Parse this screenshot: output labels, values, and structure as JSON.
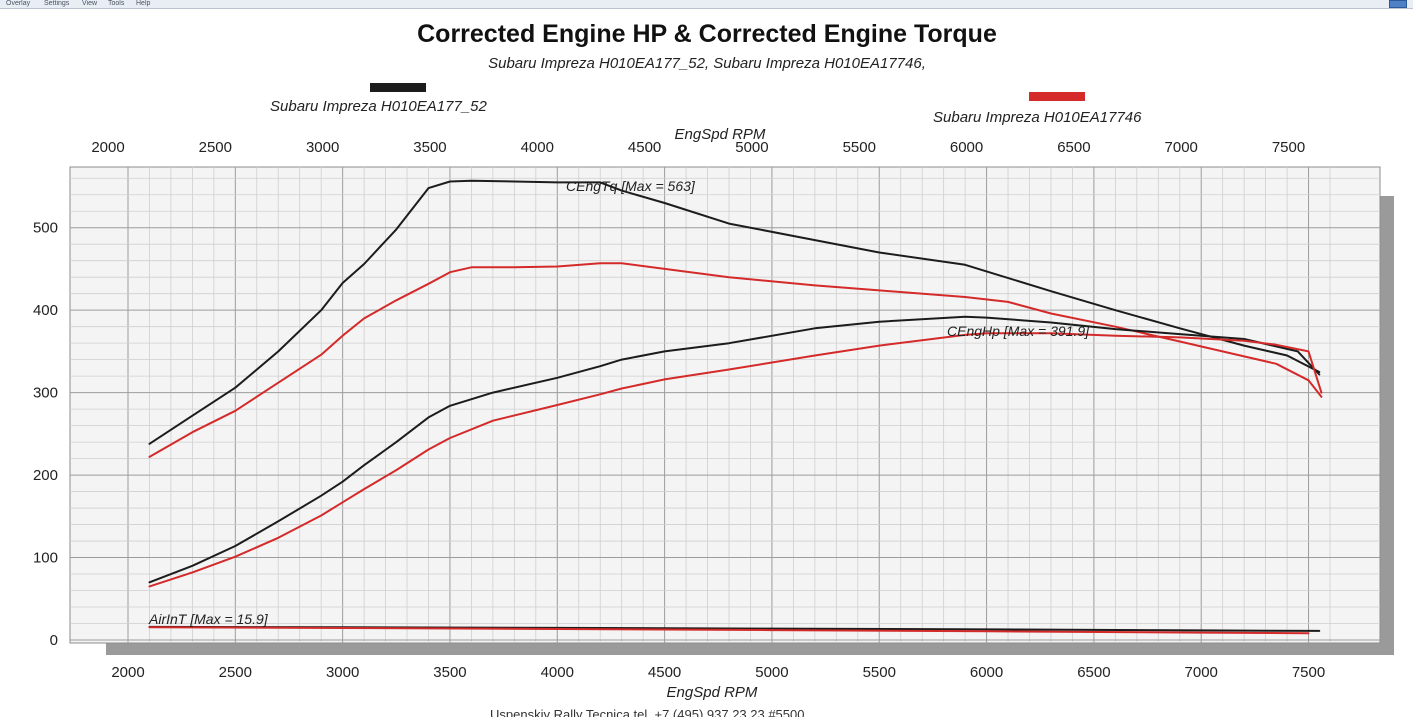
{
  "window": {
    "menu": [
      "Overlay",
      "Settings",
      "View",
      "Tools",
      "Help"
    ]
  },
  "chart_data": {
    "type": "line",
    "title": "Corrected Engine HP & Corrected Engine Torque",
    "subtitle": "Subaru Impreza H010EA177_52, Subaru Impreza H010EA17746,",
    "xlabel": "EngSpd  RPM",
    "xlim": [
      2000,
      7600
    ],
    "ylim": [
      0,
      570
    ],
    "xticks": [
      2000,
      2500,
      3000,
      3500,
      4000,
      4500,
      5000,
      5500,
      6000,
      6500,
      7000,
      7500
    ],
    "yticks": [
      0,
      100,
      200,
      300,
      400,
      500
    ],
    "legend": [
      {
        "name": "Subaru Impreza H010EA177_52",
        "color": "#1c1c1c"
      },
      {
        "name": "Subaru Impreza H010EA17746",
        "color": "#d42a2a"
      }
    ],
    "annotations": {
      "torque": "CEngTq [Max = 563]",
      "hp": "CEngHp [Max = 391.9]",
      "air": "AirInT [Max = 15.9]"
    },
    "series": [
      {
        "name": "Subaru Impreza H010EA177_52 CEngTq",
        "legend": 0,
        "x": [
          2100,
          2300,
          2500,
          2700,
          2900,
          3000,
          3100,
          3250,
          3400,
          3500,
          3600,
          3800,
          4000,
          4200,
          4300,
          4500,
          4800,
          5200,
          5500,
          5900,
          6000,
          6300,
          6600,
          6900,
          7200,
          7400,
          7550
        ],
        "y": [
          238,
          272,
          306,
          350,
          400,
          433,
          456,
          498,
          548,
          556,
          557,
          556,
          555,
          555,
          545,
          530,
          505,
          485,
          470,
          455,
          447,
          423,
          400,
          378,
          357,
          345,
          325
        ]
      },
      {
        "name": "Subaru Impreza H010EA17746 CEngTq",
        "legend": 1,
        "x": [
          2100,
          2300,
          2500,
          2700,
          2900,
          3000,
          3100,
          3250,
          3400,
          3500,
          3600,
          3800,
          4000,
          4200,
          4300,
          4500,
          4800,
          5200,
          5500,
          5900,
          6100,
          6300,
          6600,
          6900,
          7200,
          7350,
          7500,
          7560
        ],
        "y": [
          222,
          252,
          278,
          312,
          346,
          369,
          390,
          412,
          432,
          446,
          452,
          452,
          453,
          457,
          457,
          450,
          440,
          430,
          424,
          416,
          410,
          396,
          380,
          362,
          344,
          335,
          315,
          295
        ]
      },
      {
        "name": "Subaru Impreza H010EA177_52 CEngHp",
        "legend": 0,
        "x": [
          2100,
          2300,
          2500,
          2700,
          2900,
          3000,
          3100,
          3250,
          3400,
          3500,
          3700,
          4000,
          4200,
          4300,
          4500,
          4800,
          5200,
          5500,
          5900,
          6000,
          6300,
          6600,
          6900,
          7200,
          7450,
          7550
        ],
        "y": [
          70,
          90,
          114,
          144,
          175,
          192,
          212,
          240,
          270,
          284,
          300,
          318,
          332,
          340,
          350,
          360,
          378,
          386,
          392,
          391,
          385,
          377,
          371,
          365,
          350,
          322
        ]
      },
      {
        "name": "Subaru Impreza H010EA17746 CEngHp",
        "legend": 1,
        "x": [
          2100,
          2300,
          2500,
          2700,
          2900,
          3000,
          3100,
          3250,
          3400,
          3500,
          3700,
          4000,
          4200,
          4300,
          4500,
          4800,
          5200,
          5500,
          5900,
          6000,
          6300,
          6600,
          6900,
          7200,
          7350,
          7500,
          7560
        ],
        "y": [
          65,
          82,
          101,
          124,
          151,
          167,
          183,
          206,
          231,
          245,
          266,
          285,
          298,
          305,
          316,
          328,
          345,
          357,
          370,
          372,
          372,
          369,
          367,
          363,
          358,
          350,
          300
        ]
      },
      {
        "name": "Subaru Impreza H010EA177_52 AirInT",
        "legend": 0,
        "x": [
          2100,
          3000,
          4000,
          5000,
          6000,
          7000,
          7550
        ],
        "y": [
          15.9,
          15.4,
          14.7,
          13.8,
          12.8,
          11.6,
          11.0
        ]
      },
      {
        "name": "Subaru Impreza H010EA17746 AirInT",
        "legend": 1,
        "x": [
          2100,
          3000,
          4000,
          5000,
          6000,
          7000,
          7500
        ],
        "y": [
          15.5,
          14.6,
          13.4,
          12.0,
          10.6,
          9.0,
          8.2
        ]
      }
    ]
  },
  "footer": {
    "text": "Uspenskiy Rally Tecnica   tel. +7 (495) 937 23 23 #5500"
  }
}
